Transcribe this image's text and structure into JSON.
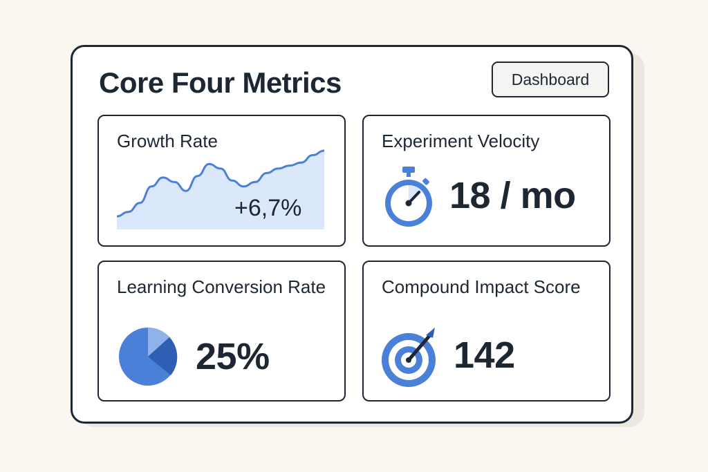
{
  "dashboard": {
    "title": "Core Four Metrics",
    "button_label": "Dashboard",
    "accent_color": "#4a80d8",
    "accent_light": "#dbe7fb",
    "accent_dark": "#2f5fb5"
  },
  "metrics": [
    {
      "label": "Growth Rate",
      "value": "+6,7%",
      "icon": "line-chart-icon",
      "trend": [
        0.12,
        0.18,
        0.3,
        0.52,
        0.64,
        0.58,
        0.46,
        0.66,
        0.82,
        0.76,
        0.6,
        0.52,
        0.58,
        0.7,
        0.76,
        0.8,
        0.84,
        0.94,
        1.0
      ]
    },
    {
      "label": "Experiment Velocity",
      "value": "18 / mo",
      "icon": "stopwatch-icon"
    },
    {
      "label": "Learning Conversion Rate",
      "value": "25%",
      "icon": "pie-chart-icon"
    },
    {
      "label": "Compound Impact Score",
      "value": "142",
      "icon": "target-icon"
    }
  ]
}
